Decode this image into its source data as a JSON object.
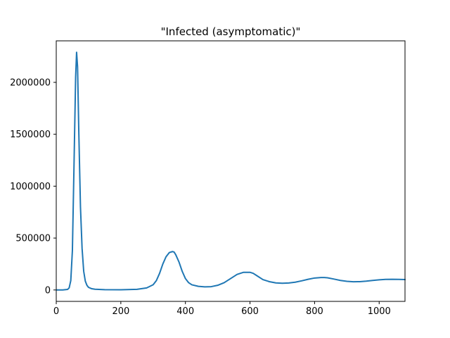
{
  "chart_data": {
    "type": "line",
    "title": "\"Infected (asymptomatic)\"",
    "xlabel": "",
    "ylabel": "",
    "xlim": [
      0,
      1080
    ],
    "ylim": [
      -110000,
      2400000
    ],
    "xticks": [
      0,
      200,
      400,
      600,
      800,
      1000
    ],
    "xtick_labels": [
      "0",
      "200",
      "400",
      "600",
      "800",
      "1000"
    ],
    "yticks": [
      0,
      500000,
      1000000,
      1500000,
      2000000
    ],
    "ytick_labels": [
      "0",
      "500000",
      "1000000",
      "1500000",
      "2000000"
    ],
    "grid": false,
    "series": [
      {
        "color": "#1f77b4",
        "x": [
          0,
          20,
          35,
          40,
          45,
          50,
          55,
          60,
          63,
          66,
          70,
          75,
          80,
          85,
          90,
          95,
          100,
          110,
          120,
          150,
          200,
          250,
          280,
          300,
          310,
          320,
          330,
          340,
          350,
          360,
          365,
          370,
          380,
          390,
          400,
          410,
          420,
          440,
          460,
          480,
          500,
          520,
          540,
          560,
          580,
          600,
          610,
          620,
          640,
          660,
          680,
          700,
          720,
          740,
          760,
          780,
          800,
          820,
          830,
          840,
          860,
          880,
          900,
          920,
          940,
          960,
          980,
          1000,
          1020,
          1040,
          1060,
          1080
        ],
        "y": [
          0,
          200,
          5000,
          20000,
          90000,
          380000,
          1200000,
          2050000,
          2290000,
          2150000,
          1500000,
          800000,
          400000,
          180000,
          85000,
          45000,
          25000,
          12000,
          7000,
          3000,
          2000,
          6000,
          20000,
          50000,
          90000,
          160000,
          250000,
          320000,
          360000,
          370000,
          365000,
          340000,
          270000,
          180000,
          110000,
          70000,
          50000,
          35000,
          30000,
          32000,
          45000,
          70000,
          110000,
          150000,
          170000,
          170000,
          160000,
          140000,
          100000,
          80000,
          68000,
          65000,
          67000,
          75000,
          88000,
          103000,
          115000,
          120000,
          120000,
          117000,
          105000,
          92000,
          83000,
          79000,
          80000,
          85000,
          92000,
          98000,
          102000,
          103000,
          102000,
          100000
        ]
      }
    ]
  }
}
